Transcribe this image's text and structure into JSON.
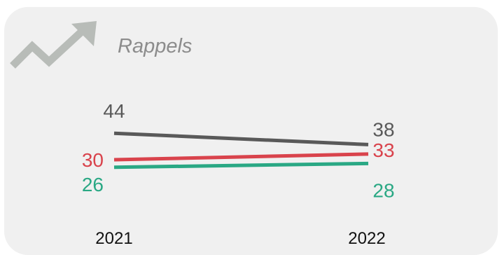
{
  "title": "Rappels",
  "icon": "trend-up-arrow-icon",
  "colors": {
    "card_background": "#f0f0f0",
    "title": "#8c8c8c",
    "icon": "#b8bcb8"
  },
  "chart_data": {
    "type": "line",
    "x": [
      "2021",
      "2022"
    ],
    "series": [
      {
        "values": [
          44,
          38
        ],
        "color": "#595959"
      },
      {
        "values": [
          30,
          33
        ],
        "color": "#d9434c"
      },
      {
        "values": [
          26,
          28
        ],
        "color": "#2aa884"
      }
    ],
    "xlabel": "",
    "ylabel": "",
    "grid": false,
    "legend": "none"
  }
}
